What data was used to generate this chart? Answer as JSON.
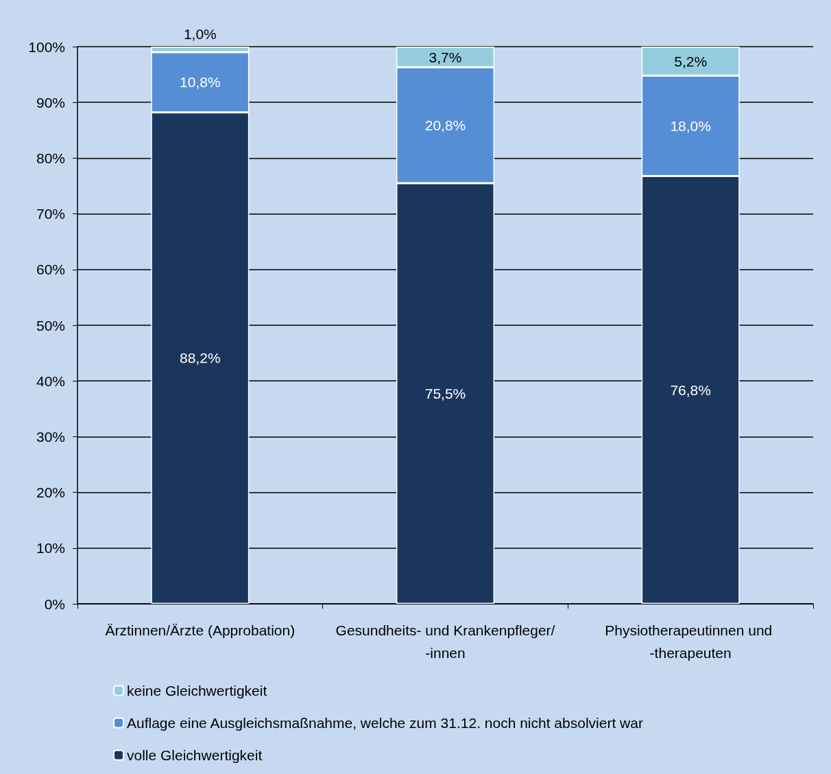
{
  "chart_data": {
    "type": "bar",
    "stacked": true,
    "categories": [
      "Ärztinnen/Ärzte (Approbation)",
      "Gesundheits- und Krankenpfleger/-innen",
      "Physiotherapeutinnen und -therapeuten"
    ],
    "series": [
      {
        "name": "volle Gleichwertigkeit",
        "color": "#1b365d",
        "values": [
          88.2,
          75.5,
          76.8
        ],
        "value_labels": [
          "88,2%",
          "75,5%",
          "76,8%"
        ]
      },
      {
        "name": "Auflage eine Ausgleichsmaßnahme, welche zum 31.12. noch nicht absolviert war",
        "color": "#558ed5",
        "values": [
          10.8,
          20.8,
          18.0
        ],
        "value_labels": [
          "10,8%",
          "20,8%",
          "18,0%"
        ]
      },
      {
        "name": "keine Gleichwertigkeit",
        "color": "#93cddd",
        "values": [
          1.0,
          3.7,
          5.2
        ],
        "value_labels": [
          "1,0%",
          "3,7%",
          "5,2%"
        ]
      }
    ],
    "ylim": [
      0,
      100
    ],
    "yticks": [
      {
        "value": 0,
        "label": "0%"
      },
      {
        "value": 10,
        "label": "10%"
      },
      {
        "value": 20,
        "label": "20%"
      },
      {
        "value": 30,
        "label": "30%"
      },
      {
        "value": 40,
        "label": "40%"
      },
      {
        "value": 50,
        "label": "50%"
      },
      {
        "value": 60,
        "label": "60%"
      },
      {
        "value": 70,
        "label": "70%"
      },
      {
        "value": 80,
        "label": "80%"
      },
      {
        "value": 90,
        "label": "90%"
      },
      {
        "value": 100,
        "label": "100%"
      }
    ],
    "grid": "y",
    "legend": "bottom"
  }
}
